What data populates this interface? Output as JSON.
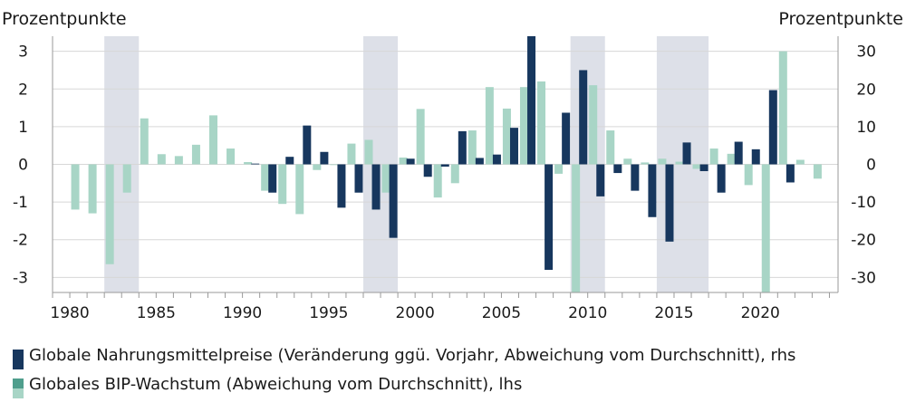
{
  "chart_data": {
    "type": "bar",
    "left_axis_title": "Prozentpunkte",
    "right_axis_title": "Prozentpunkte",
    "left_axis": {
      "range": [
        -3.4,
        3.4
      ],
      "ticks": [
        3,
        2,
        1,
        0,
        -1,
        -2,
        -3
      ],
      "tick_labels": [
        "3",
        "2",
        "1",
        "0",
        "-1",
        "-2",
        "-3"
      ]
    },
    "right_axis": {
      "range": [
        -34,
        34
      ],
      "ticks": [
        30,
        20,
        10,
        0,
        -10,
        -20,
        -30
      ],
      "tick_labels": [
        "30",
        "20",
        "10",
        "0",
        "-10",
        "-20",
        "-30"
      ]
    },
    "x_range": [
      1979,
      2024.5
    ],
    "x_ticks": [
      1980,
      1985,
      1990,
      1995,
      2000,
      2005,
      2010,
      2015,
      2020
    ],
    "x_tick_labels": [
      "1980",
      "1985",
      "1990",
      "1995",
      "2000",
      "2005",
      "2010",
      "2015",
      "2020"
    ],
    "shaded_periods": [
      [
        1982,
        1984
      ],
      [
        1997,
        1999
      ],
      [
        2009,
        2011
      ],
      [
        2014,
        2017
      ]
    ],
    "years": [
      1980,
      1981,
      1982,
      1983,
      1984,
      1985,
      1986,
      1987,
      1988,
      1989,
      1990,
      1991,
      1992,
      1993,
      1994,
      1995,
      1996,
      1997,
      1998,
      1999,
      2000,
      2001,
      2002,
      2003,
      2004,
      2005,
      2006,
      2007,
      2008,
      2009,
      2010,
      2011,
      2012,
      2013,
      2014,
      2015,
      2016,
      2017,
      2018,
      2019,
      2020,
      2021,
      2022,
      2023
    ],
    "series": [
      {
        "name": "Globale Nahrungsmittelpreise (Veränderung ggü. Vorjahr, Abweichung vom Durchschnitt), rhs",
        "axis": "right",
        "color": "#17375e",
        "values": [
          null,
          null,
          null,
          null,
          null,
          null,
          null,
          null,
          null,
          null,
          null,
          0.2,
          -7.5,
          2,
          10.3,
          3.3,
          -11.5,
          -7.5,
          -12,
          -19.5,
          1.5,
          -3.3,
          -0.6,
          8.8,
          1.7,
          2.6,
          9.7,
          34,
          -28,
          13.7,
          25,
          -8.5,
          -2.3,
          -7,
          -14,
          -20.5,
          5.8,
          -1.8,
          -7.5,
          6,
          4,
          19.7,
          -4.8,
          null
        ]
      },
      {
        "name": "Globales BIP-Wachstum (Abweichung vom Durchschnitt), lhs",
        "axis": "left",
        "color": "#a8d5c6",
        "values": [
          -1.2,
          -1.3,
          -2.65,
          -0.75,
          1.22,
          0.27,
          0.22,
          0.52,
          1.3,
          0.42,
          0.06,
          -0.7,
          -1.05,
          -1.32,
          -0.15,
          0.0,
          0.55,
          0.65,
          -0.75,
          0.18,
          1.47,
          -0.88,
          -0.5,
          0.9,
          2.05,
          1.48,
          2.05,
          2.2,
          -0.25,
          -3.4,
          2.1,
          0.9,
          0.15,
          0.05,
          0.15,
          0.07,
          -0.12,
          0.42,
          0.28,
          -0.55,
          -3.4,
          3.0,
          0.12,
          -0.38
        ]
      }
    ],
    "legend": [
      {
        "label": "Globale Nahrungsmittelpreise (Veränderung ggü. Vorjahr, Abweichung vom Durchschnitt), rhs",
        "color": "#17375e",
        "color_alt": "#17375e"
      },
      {
        "label": "Globales BIP-Wachstum (Abweichung vom Durchschnitt), lhs",
        "color": "#4f9e8c",
        "color_alt": "#a8d5c6"
      }
    ]
  }
}
